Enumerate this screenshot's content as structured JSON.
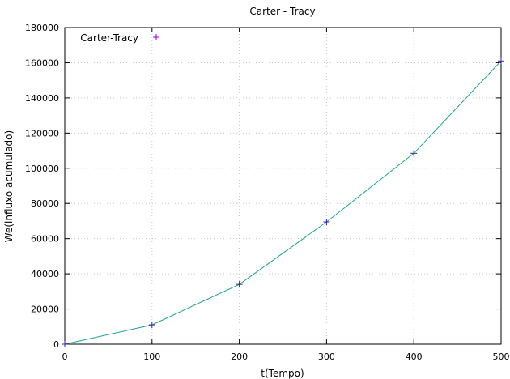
{
  "chart_data": {
    "type": "line",
    "title": "Carter - Tracy",
    "xlabel": "t(Tempo)",
    "ylabel": "We(influxo acumulado)",
    "xlim": [
      0,
      500
    ],
    "ylim": [
      0,
      180000
    ],
    "xticks": [
      "0",
      "100",
      "200",
      "300",
      "400",
      "500"
    ],
    "yticks": [
      "0",
      "20000",
      "40000",
      "60000",
      "80000",
      "100000",
      "120000",
      "140000",
      "160000",
      "180000"
    ],
    "grid": true,
    "legend_position": "top-left",
    "series": [
      {
        "name": "Carter-Tracy",
        "line_color": "#20a090",
        "marker_color": "#3a1fa8",
        "legend_marker_color": "#9400d3",
        "marker": "plus",
        "x": [
          0,
          100,
          200,
          300,
          400,
          500
        ],
        "y": [
          0,
          11000,
          34000,
          69500,
          108500,
          161000
        ]
      }
    ]
  }
}
